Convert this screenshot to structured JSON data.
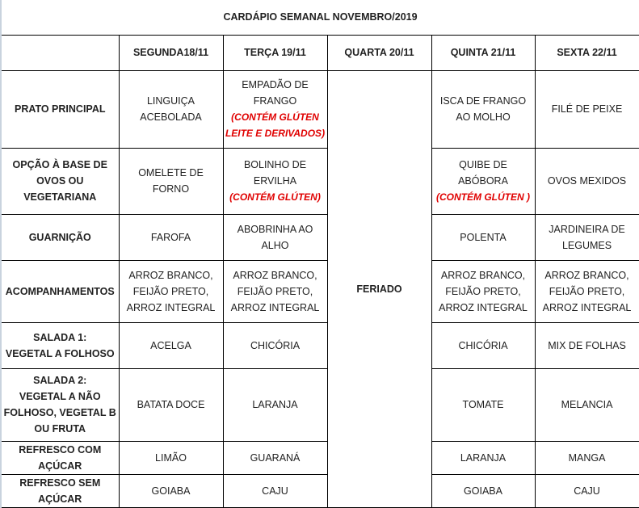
{
  "title": "CARDÁPIO SEMANAL NOVEMBRO/2019",
  "headers": [
    "",
    "SEGUNDA18/11",
    "TERÇA 19/11",
    "QUARTA 20/11",
    "QUINTA 21/11",
    "SEXTA 22/11"
  ],
  "holiday_label": "FERIADO",
  "colors": {
    "note": "#e00000",
    "border": "#000000"
  },
  "rows": [
    {
      "label": [
        "PRATO PRINCIPAL"
      ],
      "cells": [
        {
          "lines": [
            "LINGUIÇA",
            "ACEBOLADA"
          ]
        },
        {
          "lines": [
            "EMPADÃO DE",
            "FRANGO"
          ],
          "notes": [
            "(CONTÉM GLÚTEN",
            "LEITE E DERIVADOS)"
          ]
        },
        {
          "lines": [
            "ISCA DE FRANGO",
            "AO MOLHO"
          ]
        },
        {
          "lines": [
            "FILÉ DE PEIXE"
          ]
        }
      ]
    },
    {
      "label": [
        "OPÇÃO À BASE DE",
        "OVOS OU",
        "VEGETARIANA"
      ],
      "cells": [
        {
          "lines": [
            "OMELETE DE FORNO"
          ]
        },
        {
          "lines": [
            "BOLINHO DE",
            "ERVILHA"
          ],
          "notes": [
            "(CONTÉM GLÚTEN)"
          ]
        },
        {
          "lines": [
            "QUIBE DE ABÓBORA"
          ],
          "notes": [
            "(CONTÉM GLÚTEN )"
          ]
        },
        {
          "lines": [
            "OVOS MEXIDOS"
          ]
        }
      ]
    },
    {
      "label": [
        "GUARNIÇÃO"
      ],
      "cells": [
        {
          "lines": [
            "FAROFA"
          ]
        },
        {
          "lines": [
            "ABOBRINHA AO",
            "ALHO"
          ]
        },
        {
          "lines": [
            "POLENTA"
          ]
        },
        {
          "lines": [
            "JARDINEIRA DE",
            "LEGUMES"
          ]
        }
      ]
    },
    {
      "label": [
        "ACOMPANHAMENTOS"
      ],
      "cells": [
        {
          "lines": [
            "ARROZ BRANCO,",
            "FEIJÃO PRETO,",
            "ARROZ INTEGRAL"
          ]
        },
        {
          "lines": [
            "ARROZ BRANCO,",
            "FEIJÃO PRETO,",
            "ARROZ INTEGRAL"
          ]
        },
        {
          "lines": [
            "ARROZ BRANCO,",
            "FEIJÃO PRETO,",
            "ARROZ INTEGRAL"
          ]
        },
        {
          "lines": [
            "ARROZ BRANCO,",
            "FEIJÃO PRETO,",
            "ARROZ INTEGRAL"
          ]
        }
      ]
    },
    {
      "label": [
        "SALADA 1:",
        "VEGETAL A FOLHOSO"
      ],
      "cells": [
        {
          "lines": [
            "ACELGA"
          ]
        },
        {
          "lines": [
            "CHICÓRIA"
          ]
        },
        {
          "lines": [
            "CHICÓRIA"
          ]
        },
        {
          "lines": [
            "MIX DE FOLHAS"
          ]
        }
      ]
    },
    {
      "label": [
        "SALADA 2:",
        "VEGETAL A NÃO",
        "FOLHOSO, VEGETAL B",
        "OU FRUTA"
      ],
      "cells": [
        {
          "lines": [
            "BATATA DOCE"
          ]
        },
        {
          "lines": [
            "LARANJA"
          ]
        },
        {
          "lines": [
            "TOMATE"
          ]
        },
        {
          "lines": [
            "MELANCIA"
          ]
        }
      ]
    },
    {
      "label": [
        "REFRESCO COM",
        "AÇÚCAR"
      ],
      "cells": [
        {
          "lines": [
            "LIMÃO"
          ]
        },
        {
          "lines": [
            "GUARANÁ"
          ]
        },
        {
          "lines": [
            "LARANJA"
          ]
        },
        {
          "lines": [
            "MANGA"
          ]
        }
      ]
    },
    {
      "label": [
        "REFRESCO SEM",
        "AÇÚCAR"
      ],
      "cells": [
        {
          "lines": [
            "GOIABA"
          ]
        },
        {
          "lines": [
            "CAJU"
          ]
        },
        {
          "lines": [
            "GOIABA"
          ]
        },
        {
          "lines": [
            "CAJU"
          ]
        }
      ]
    }
  ]
}
